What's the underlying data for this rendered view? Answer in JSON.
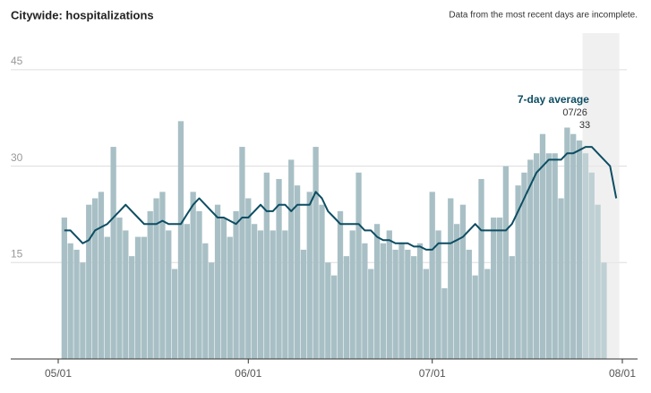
{
  "chart_data": {
    "type": "bar",
    "title": "Citywide: hospitalizations",
    "subtitle": "Data from the most recent days are incomplete.",
    "xlim": [
      0,
      92
    ],
    "xticks": [
      {
        "value": 0,
        "label": "05/01"
      },
      {
        "value": 31,
        "label": "06/01"
      },
      {
        "value": 61,
        "label": "07/01"
      },
      {
        "value": 92,
        "label": "08/01"
      }
    ],
    "ylim": [
      0,
      50
    ],
    "yticks": [
      15,
      30,
      45
    ],
    "grid": true,
    "incomplete_xrange": [
      85.5,
      91.5
    ],
    "bars": {
      "color": "#a8c0c5",
      "x": [
        1,
        2,
        3,
        4,
        5,
        6,
        7,
        8,
        9,
        10,
        11,
        12,
        13,
        14,
        15,
        16,
        17,
        18,
        19,
        20,
        21,
        22,
        23,
        24,
        25,
        26,
        27,
        28,
        29,
        30,
        31,
        32,
        33,
        34,
        35,
        36,
        37,
        38,
        39,
        40,
        41,
        42,
        43,
        44,
        45,
        46,
        47,
        48,
        49,
        50,
        51,
        52,
        53,
        54,
        55,
        56,
        57,
        58,
        59,
        60,
        61,
        62,
        63,
        64,
        65,
        66,
        67,
        68,
        69,
        70,
        71,
        72,
        73,
        74,
        75,
        76,
        77,
        78,
        79,
        80,
        81,
        82,
        83,
        84,
        85,
        86,
        87,
        88,
        89
      ],
      "values": [
        22,
        18,
        17,
        15,
        24,
        25,
        26,
        19,
        33,
        22,
        20,
        16,
        19,
        19,
        23,
        25,
        26,
        20,
        14,
        37,
        21,
        26,
        23,
        18,
        15,
        24,
        22,
        19,
        23,
        33,
        25,
        21,
        20,
        29,
        20,
        28,
        20,
        31,
        27,
        17,
        26,
        33,
        24,
        15,
        13,
        23,
        16,
        20,
        29,
        18,
        14,
        21,
        18,
        20,
        17,
        18,
        17,
        16,
        18,
        14,
        26,
        20,
        11,
        25,
        21,
        24,
        17,
        13,
        28,
        14,
        22,
        22,
        30,
        16,
        27,
        29,
        31,
        32,
        35,
        32,
        32,
        25,
        36,
        35,
        34,
        32,
        29,
        24,
        15
      ]
    },
    "average": {
      "name": "7-day average",
      "color": "#0d4d63",
      "x": [
        1,
        2,
        3,
        4,
        5,
        6,
        7,
        8,
        9,
        10,
        11,
        12,
        13,
        14,
        15,
        16,
        17,
        18,
        19,
        20,
        21,
        22,
        23,
        24,
        25,
        26,
        27,
        28,
        29,
        30,
        31,
        32,
        33,
        34,
        35,
        36,
        37,
        38,
        39,
        40,
        41,
        42,
        43,
        44,
        45,
        46,
        47,
        48,
        49,
        50,
        51,
        52,
        53,
        54,
        55,
        56,
        57,
        58,
        59,
        60,
        61,
        62,
        63,
        64,
        65,
        66,
        67,
        68,
        69,
        70,
        71,
        72,
        73,
        74,
        75,
        76,
        77,
        78,
        79,
        80,
        81,
        82,
        83,
        84,
        85,
        86,
        87,
        88,
        89,
        90,
        91
      ],
      "values": [
        20,
        20,
        19,
        18,
        18.5,
        20,
        20.5,
        21,
        22,
        23,
        24,
        23,
        22,
        21,
        21,
        21,
        21.5,
        21,
        21,
        21,
        22.5,
        24,
        25,
        24,
        23,
        22,
        22,
        21.5,
        21,
        22,
        22,
        23,
        24,
        23,
        23,
        24,
        24,
        23,
        24,
        24,
        24,
        26,
        25,
        23,
        22,
        21,
        21,
        21,
        21,
        20,
        20,
        19,
        18.5,
        18.5,
        18,
        18,
        18,
        17.5,
        17.5,
        17,
        17,
        18,
        18,
        18,
        18.5,
        19,
        20,
        21,
        20,
        20,
        20,
        20,
        20,
        21,
        23,
        25,
        27,
        29,
        30,
        31,
        31,
        31,
        32,
        32,
        32.5,
        33,
        33,
        32,
        31,
        30,
        25
      ]
    },
    "annotation": {
      "x": 86,
      "date": "07/26",
      "value": 33
    }
  }
}
